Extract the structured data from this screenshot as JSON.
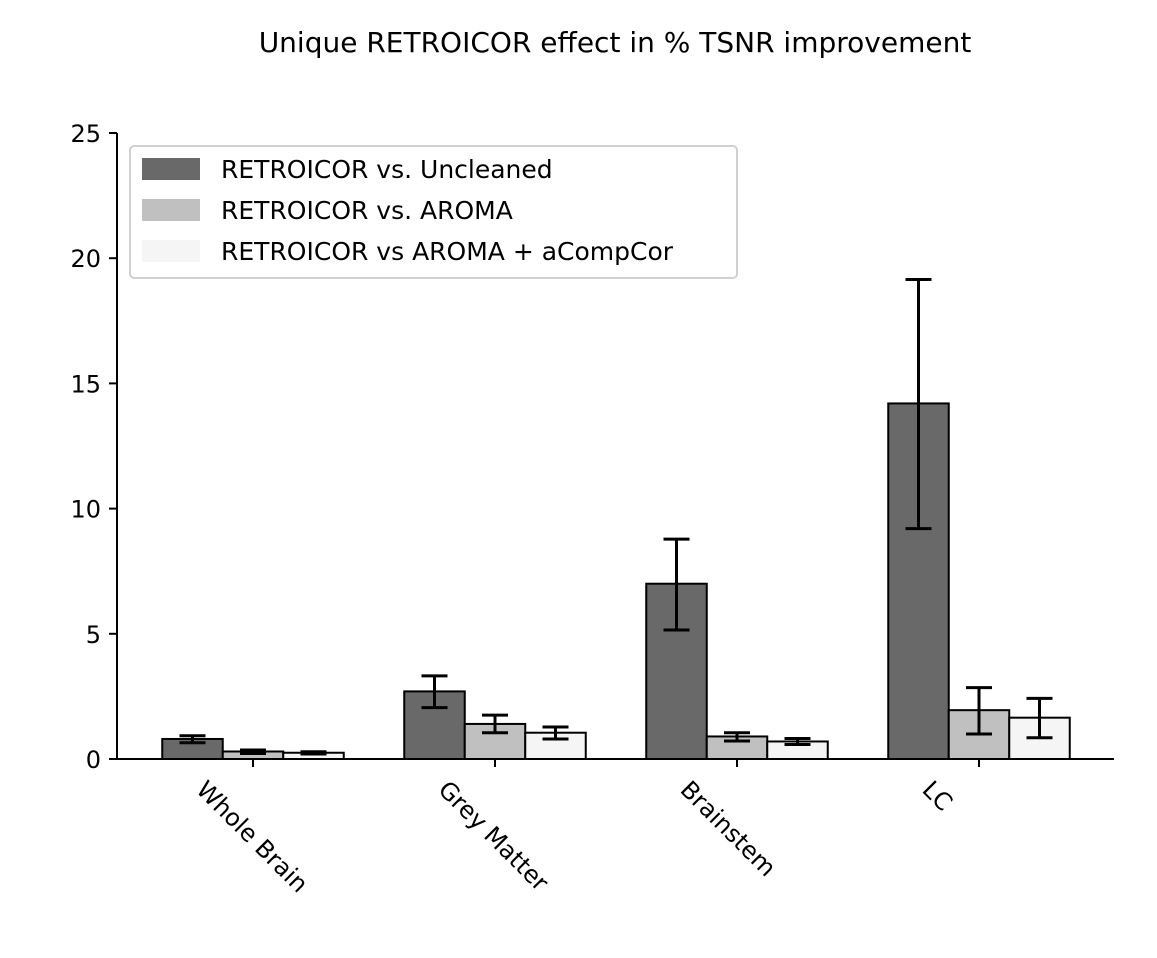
{
  "chart_data": {
    "type": "bar",
    "title": "Unique RETROICOR effect in % TSNR improvement",
    "xlabel": "",
    "ylabel": "",
    "ylim": [
      0,
      25
    ],
    "yticks": [
      0,
      5,
      10,
      15,
      20,
      25
    ],
    "categories": [
      "Whole Brain",
      "Grey Matter",
      "Brainstem",
      "LC"
    ],
    "series": [
      {
        "name": "RETROICOR vs. Uncleaned",
        "color": "#696969",
        "values": [
          0.8,
          2.7,
          7.0,
          14.2
        ],
        "error_low": [
          0.65,
          2.05,
          5.15,
          9.2
        ],
        "error_high": [
          0.93,
          3.32,
          8.78,
          19.15
        ]
      },
      {
        "name": "RETROICOR vs. AROMA",
        "color": "#c0c0c0",
        "values": [
          0.3,
          1.4,
          0.9,
          1.95
        ],
        "error_low": [
          0.22,
          1.05,
          0.72,
          1.0
        ],
        "error_high": [
          0.36,
          1.75,
          1.05,
          2.85
        ]
      },
      {
        "name": "RETROICOR vs AROMA + aCompCor",
        "color": "#f5f5f5",
        "values": [
          0.25,
          1.05,
          0.7,
          1.65
        ],
        "error_low": [
          0.2,
          0.8,
          0.58,
          0.85
        ],
        "error_high": [
          0.29,
          1.28,
          0.82,
          2.42
        ]
      }
    ],
    "legend_position": "top-left",
    "grid": false
  }
}
